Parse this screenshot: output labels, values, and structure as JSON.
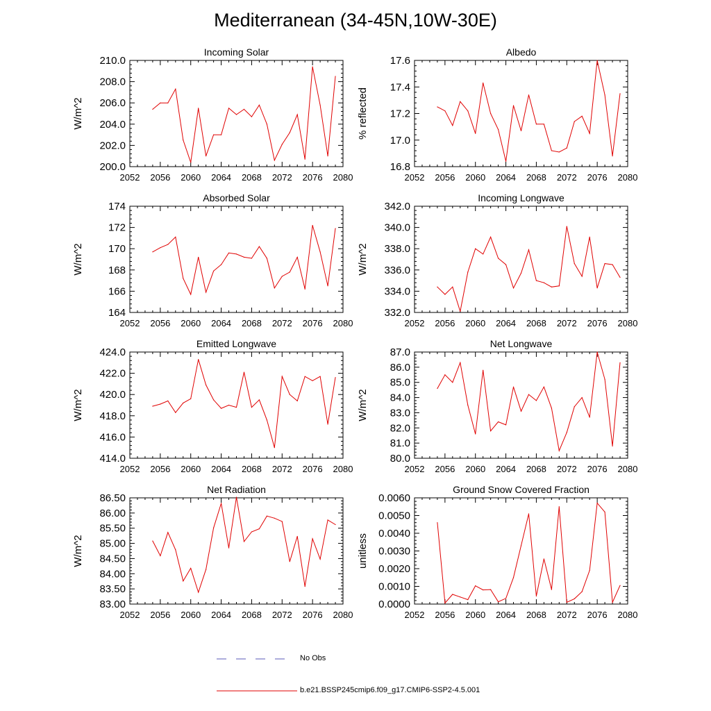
{
  "figure": {
    "title": "Mediterranean (34-45N,10W-30E)"
  },
  "legend": {
    "entries": [
      {
        "label": "No Obs",
        "color": "#5a5ab8",
        "style": "dashed"
      },
      {
        "label": "b.e21.BSSP245cmip6.f09_g17.CMIP6-SSP2-4.5.001",
        "color": "#e00000",
        "style": "solid"
      }
    ]
  },
  "chart_data": [
    {
      "type": "line",
      "title": "Incoming Solar",
      "ylabel": "W/m^2",
      "xlim": [
        2052,
        2080
      ],
      "ylim": [
        200,
        210
      ],
      "xticks": [
        "2052",
        "2056",
        "2060",
        "2064",
        "2068",
        "2072",
        "2076",
        "2080"
      ],
      "yticks": [
        "200.0",
        "202.0",
        "204.0",
        "206.0",
        "208.0",
        "210.0"
      ],
      "x": [
        2055,
        2056,
        2057,
        2058,
        2059,
        2060,
        2061,
        2062,
        2063,
        2064,
        2065,
        2066,
        2067,
        2068,
        2069,
        2070,
        2071,
        2072,
        2073,
        2074,
        2075,
        2076,
        2077,
        2078,
        2079
      ],
      "series": [
        {
          "name": "b.e21.BSSP245cmip6.f09_g17.CMIP6-SSP2-4.5.001",
          "color": "#e00000",
          "values": [
            205.4,
            206.0,
            206.0,
            207.3,
            202.5,
            200.4,
            205.5,
            201.0,
            203.0,
            203.0,
            205.5,
            204.9,
            205.4,
            204.7,
            205.8,
            204.0,
            200.6,
            202.1,
            203.2,
            204.9,
            200.7,
            209.4,
            205.8,
            201.0,
            208.5
          ]
        }
      ]
    },
    {
      "type": "line",
      "title": "Albedo",
      "ylabel": "% reflected",
      "xlim": [
        2052,
        2080
      ],
      "ylim": [
        16.8,
        17.6
      ],
      "xticks": [
        "2052",
        "2056",
        "2060",
        "2064",
        "2068",
        "2072",
        "2076",
        "2080"
      ],
      "yticks": [
        "16.8",
        "17.0",
        "17.2",
        "17.4",
        "17.6"
      ],
      "x": [
        2055,
        2056,
        2057,
        2058,
        2059,
        2060,
        2061,
        2062,
        2063,
        2064,
        2065,
        2066,
        2067,
        2068,
        2069,
        2070,
        2071,
        2072,
        2073,
        2074,
        2075,
        2076,
        2077,
        2078,
        2079
      ],
      "series": [
        {
          "name": "b.e21.BSSP245cmip6.f09_g17.CMIP6-SSP2-4.5.001",
          "color": "#e00000",
          "values": [
            17.25,
            17.22,
            17.11,
            17.29,
            17.22,
            17.05,
            17.43,
            17.2,
            17.08,
            16.84,
            17.26,
            17.07,
            17.34,
            17.12,
            17.12,
            16.92,
            16.91,
            16.94,
            17.14,
            17.18,
            17.05,
            17.6,
            17.34,
            16.88,
            17.35
          ]
        }
      ]
    },
    {
      "type": "line",
      "title": "Absorbed Solar",
      "ylabel": "W/m^2",
      "xlim": [
        2052,
        2080
      ],
      "ylim": [
        164,
        174
      ],
      "xticks": [
        "2052",
        "2056",
        "2060",
        "2064",
        "2068",
        "2072",
        "2076",
        "2080"
      ],
      "yticks": [
        "164",
        "166",
        "168",
        "170",
        "172",
        "174"
      ],
      "x": [
        2055,
        2056,
        2057,
        2058,
        2059,
        2060,
        2061,
        2062,
        2063,
        2064,
        2065,
        2066,
        2067,
        2068,
        2069,
        2070,
        2071,
        2072,
        2073,
        2074,
        2075,
        2076,
        2077,
        2078,
        2079
      ],
      "series": [
        {
          "name": "b.e21.BSSP245cmip6.f09_g17.CMIP6-SSP2-4.5.001",
          "color": "#e00000",
          "values": [
            169.7,
            170.1,
            170.4,
            171.1,
            167.2,
            165.7,
            169.2,
            165.9,
            167.9,
            168.5,
            169.6,
            169.5,
            169.2,
            169.1,
            170.2,
            169.1,
            166.3,
            167.4,
            167.8,
            169.2,
            166.2,
            172.2,
            169.7,
            166.5,
            171.9
          ]
        }
      ]
    },
    {
      "type": "line",
      "title": "Incoming Longwave",
      "ylabel": "W/m^2",
      "xlim": [
        2052,
        2080
      ],
      "ylim": [
        332,
        342
      ],
      "xticks": [
        "2052",
        "2056",
        "2060",
        "2064",
        "2068",
        "2072",
        "2076",
        "2080"
      ],
      "yticks": [
        "332.0",
        "334.0",
        "336.0",
        "338.0",
        "340.0",
        "342.0"
      ],
      "x": [
        2055,
        2056,
        2057,
        2058,
        2059,
        2060,
        2061,
        2062,
        2063,
        2064,
        2065,
        2066,
        2067,
        2068,
        2069,
        2070,
        2071,
        2072,
        2073,
        2074,
        2075,
        2076,
        2077,
        2078,
        2079
      ],
      "series": [
        {
          "name": "b.e21.BSSP245cmip6.f09_g17.CMIP6-SSP2-4.5.001",
          "color": "#e00000",
          "values": [
            334.4,
            333.7,
            334.4,
            332.1,
            335.8,
            338.0,
            337.5,
            339.1,
            337.1,
            336.5,
            334.3,
            335.7,
            337.9,
            335.0,
            334.8,
            334.4,
            334.5,
            340.1,
            336.6,
            335.4,
            339.1,
            334.3,
            336.6,
            336.5,
            335.3
          ]
        }
      ]
    },
    {
      "type": "line",
      "title": "Emitted Longwave",
      "ylabel": "W/m^2",
      "xlim": [
        2052,
        2080
      ],
      "ylim": [
        414,
        424
      ],
      "xticks": [
        "2052",
        "2056",
        "2060",
        "2064",
        "2068",
        "2072",
        "2076",
        "2080"
      ],
      "yticks": [
        "414.0",
        "416.0",
        "418.0",
        "420.0",
        "422.0",
        "424.0"
      ],
      "x": [
        2055,
        2056,
        2057,
        2058,
        2059,
        2060,
        2061,
        2062,
        2063,
        2064,
        2065,
        2066,
        2067,
        2068,
        2069,
        2070,
        2071,
        2072,
        2073,
        2074,
        2075,
        2076,
        2077,
        2078,
        2079
      ],
      "series": [
        {
          "name": "b.e21.BSSP245cmip6.f09_g17.CMIP6-SSP2-4.5.001",
          "color": "#e00000",
          "values": [
            418.9,
            419.1,
            419.4,
            418.3,
            419.2,
            419.6,
            423.3,
            420.9,
            419.5,
            418.7,
            419.0,
            418.8,
            422.1,
            418.8,
            419.5,
            417.6,
            415.0,
            421.7,
            420.0,
            419.4,
            421.7,
            421.3,
            421.7,
            417.2,
            421.6
          ]
        }
      ]
    },
    {
      "type": "line",
      "title": "Net Longwave",
      "ylabel": "W/m^2",
      "xlim": [
        2052,
        2080
      ],
      "ylim": [
        80,
        87
      ],
      "xticks": [
        "2052",
        "2056",
        "2060",
        "2064",
        "2068",
        "2072",
        "2076",
        "2080"
      ],
      "yticks": [
        "80.0",
        "81.0",
        "82.0",
        "83.0",
        "84.0",
        "85.0",
        "86.0",
        "87.0"
      ],
      "x": [
        2055,
        2056,
        2057,
        2058,
        2059,
        2060,
        2061,
        2062,
        2063,
        2064,
        2065,
        2066,
        2067,
        2068,
        2069,
        2070,
        2071,
        2072,
        2073,
        2074,
        2075,
        2076,
        2077,
        2078,
        2079
      ],
      "series": [
        {
          "name": "b.e21.BSSP245cmip6.f09_g17.CMIP6-SSP2-4.5.001",
          "color": "#e00000",
          "values": [
            84.6,
            85.5,
            85.0,
            86.3,
            83.5,
            81.6,
            85.8,
            81.8,
            82.4,
            82.2,
            84.7,
            83.1,
            84.2,
            83.8,
            84.7,
            83.3,
            80.5,
            81.7,
            83.4,
            84.0,
            82.7,
            87.0,
            85.2,
            80.8,
            86.3
          ]
        }
      ]
    },
    {
      "type": "line",
      "title": "Net Radiation",
      "ylabel": "W/m^2",
      "xlim": [
        2052,
        2080
      ],
      "ylim": [
        83,
        86.5
      ],
      "xticks": [
        "2052",
        "2056",
        "2060",
        "2064",
        "2068",
        "2072",
        "2076",
        "2080"
      ],
      "yticks": [
        "83.00",
        "83.50",
        "84.00",
        "84.50",
        "85.00",
        "85.50",
        "86.00",
        "86.50"
      ],
      "x": [
        2055,
        2056,
        2057,
        2058,
        2059,
        2060,
        2061,
        2062,
        2063,
        2064,
        2065,
        2066,
        2067,
        2068,
        2069,
        2070,
        2071,
        2072,
        2073,
        2074,
        2075,
        2076,
        2077,
        2078,
        2079
      ],
      "series": [
        {
          "name": "b.e21.BSSP245cmip6.f09_g17.CMIP6-SSP2-4.5.001",
          "color": "#e00000",
          "values": [
            85.08,
            84.59,
            85.36,
            84.79,
            83.76,
            84.18,
            83.39,
            84.14,
            85.51,
            86.32,
            84.85,
            86.52,
            85.06,
            85.38,
            85.48,
            85.9,
            85.83,
            85.72,
            84.4,
            85.23,
            83.58,
            85.15,
            84.48,
            85.77,
            85.62
          ]
        }
      ]
    },
    {
      "type": "line",
      "title": "Ground Snow Covered Fraction",
      "ylabel": "unitless",
      "xlim": [
        2052,
        2080
      ],
      "ylim": [
        0,
        0.006
      ],
      "xticks": [
        "2052",
        "2056",
        "2060",
        "2064",
        "2068",
        "2072",
        "2076",
        "2080"
      ],
      "yticks": [
        "0.0000",
        "0.0010",
        "0.0020",
        "0.0030",
        "0.0040",
        "0.0050",
        "0.0060"
      ],
      "x": [
        2055,
        2056,
        2057,
        2058,
        2059,
        2060,
        2061,
        2062,
        2063,
        2064,
        2065,
        2066,
        2067,
        2068,
        2069,
        2070,
        2071,
        2072,
        2073,
        2074,
        2075,
        2076,
        2077,
        2078,
        2079
      ],
      "series": [
        {
          "name": "b.e21.BSSP245cmip6.f09_g17.CMIP6-SSP2-4.5.001",
          "color": "#e00000",
          "values": [
            0.0046,
            6e-05,
            0.00055,
            0.0004,
            0.00025,
            0.00103,
            0.0008,
            0.00082,
            0.00013,
            0.00032,
            0.0015,
            0.0033,
            0.0051,
            0.00045,
            0.00255,
            0.00082,
            0.0055,
            0.0001,
            0.0003,
            0.0007,
            0.0019,
            0.0057,
            0.0052,
            0.0001,
            0.00105
          ]
        }
      ]
    }
  ]
}
